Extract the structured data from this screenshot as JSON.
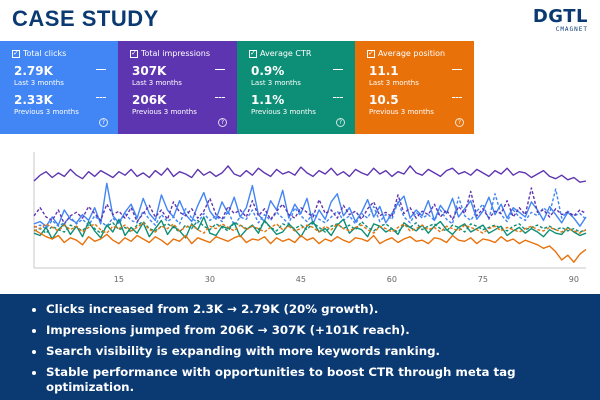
{
  "header": {
    "title": "CASE STUDY"
  },
  "logo": {
    "brand": "DGTL",
    "sub": "CMAGNET"
  },
  "metrics": [
    {
      "name": "Total clicks",
      "current": "2.79K",
      "current_label": "Last 3 months",
      "previous": "2.33K",
      "previous_label": "Previous 3 months",
      "color": "#4285f4"
    },
    {
      "name": "Total impressions",
      "current": "307K",
      "current_label": "Last 3 months",
      "previous": "206K",
      "previous_label": "Previous 3 months",
      "color": "#5e35b1"
    },
    {
      "name": "Average CTR",
      "current": "0.9%",
      "current_label": "Last 3 months",
      "previous": "1.1%",
      "previous_label": "Previous 3 months",
      "color": "#0d8e76"
    },
    {
      "name": "Average position",
      "current": "11.1",
      "current_label": "Last 3 months",
      "previous": "10.5",
      "previous_label": "Previous 3 months",
      "color": "#e8710a"
    }
  ],
  "chart_data": {
    "type": "line",
    "xlabel": "",
    "ylabel": "",
    "xlim": [
      1,
      92
    ],
    "ylim": [
      0,
      100
    ],
    "xticks": [
      15,
      30,
      45,
      60,
      75,
      90
    ],
    "grid": false,
    "series": [
      {
        "name": "Total clicks (last 3 months)",
        "color": "#4285f4",
        "dash": false,
        "values": [
          38,
          40,
          36,
          44,
          37,
          50,
          42,
          39,
          46,
          41,
          52,
          38,
          73,
          45,
          39,
          48,
          55,
          43,
          60,
          47,
          41,
          63,
          50,
          44,
          58,
          46,
          40,
          54,
          65,
          49,
          42,
          57,
          47,
          61,
          44,
          52,
          71,
          46,
          40,
          58,
          50,
          67,
          43,
          55,
          47,
          60,
          38,
          50,
          42,
          57,
          64,
          45,
          52,
          40,
          48,
          59,
          44,
          53,
          39,
          47,
          56,
          62,
          43,
          50,
          45,
          58,
          41,
          54,
          47,
          60,
          44,
          51,
          58,
          42,
          49,
          61,
          46,
          55,
          43,
          52,
          48,
          44,
          57,
          50,
          41,
          53,
          46,
          39,
          48,
          43,
          36,
          44
        ]
      },
      {
        "name": "Total clicks (previous 3 months)",
        "color": "#4285f4",
        "dash": true,
        "values": [
          35,
          37,
          34,
          41,
          36,
          39,
          44,
          38,
          42,
          37,
          45,
          40,
          36,
          43,
          38,
          47,
          41,
          39,
          49,
          42,
          37,
          46,
          40,
          44,
          38,
          51,
          43,
          39,
          47,
          41,
          45,
          40,
          49,
          37,
          44,
          42,
          50,
          39,
          46,
          41,
          48,
          43,
          38,
          52,
          45,
          40,
          47,
          42,
          39,
          44,
          49,
          41,
          45,
          38,
          47,
          43,
          53,
          40,
          46,
          42,
          57,
          44,
          39,
          48,
          43,
          46,
          41,
          50,
          42,
          38,
          61,
          45,
          41,
          49,
          55,
          42,
          64,
          46,
          40,
          50,
          44,
          41,
          48,
          45,
          52,
          47,
          68,
          43,
          49,
          45,
          47,
          42
        ]
      },
      {
        "name": "Total impressions (last 3 months)",
        "color": "#5e35b1",
        "dash": false,
        "values": [
          75,
          80,
          83,
          78,
          82,
          79,
          85,
          80,
          77,
          83,
          79,
          84,
          81,
          78,
          83,
          80,
          85,
          79,
          82,
          78,
          84,
          80,
          86,
          79,
          83,
          81,
          78,
          85,
          80,
          83,
          79,
          82,
          88,
          81,
          79,
          84,
          80,
          86,
          82,
          79,
          85,
          81,
          83,
          80,
          87,
          82,
          79,
          84,
          81,
          86,
          80,
          83,
          79,
          85,
          82,
          80,
          86,
          81,
          84,
          79,
          83,
          81,
          88,
          82,
          80,
          85,
          82,
          79,
          84,
          86,
          81,
          83,
          80,
          85,
          82,
          79,
          84,
          81,
          86,
          80,
          83,
          82,
          78,
          81,
          84,
          79,
          77,
          80,
          76,
          78,
          74,
          75
        ]
      },
      {
        "name": "Total impressions (previous 3 months)",
        "color": "#5e35b1",
        "dash": true,
        "values": [
          45,
          52,
          44,
          41,
          50,
          38,
          45,
          48,
          43,
          53,
          47,
          41,
          55,
          46,
          49,
          43,
          52,
          40,
          47,
          54,
          44,
          50,
          42,
          57,
          48,
          45,
          51,
          43,
          49,
          60,
          46,
          42,
          53,
          47,
          50,
          44,
          58,
          45,
          51,
          42,
          49,
          55,
          46,
          43,
          52,
          48,
          44,
          59,
          47,
          50,
          43,
          54,
          46,
          49,
          42,
          51,
          57,
          45,
          48,
          44,
          63,
          47,
          52,
          43,
          49,
          46,
          55,
          44,
          50,
          42,
          53,
          47,
          66,
          45,
          51,
          43,
          49,
          47,
          58,
          44,
          52,
          46,
          69,
          48,
          50,
          44,
          51,
          46,
          48,
          45,
          50,
          47
        ]
      },
      {
        "name": "Average CTR (last 3 months)",
        "color": "#0d8e76",
        "dash": false,
        "values": [
          30,
          28,
          35,
          25,
          33,
          38,
          29,
          36,
          27,
          40,
          32,
          26,
          37,
          31,
          42,
          28,
          35,
          30,
          39,
          27,
          34,
          41,
          29,
          36,
          32,
          26,
          38,
          33,
          44,
          30,
          28,
          36,
          34,
          39,
          27,
          33,
          37,
          30,
          41,
          35,
          29,
          31,
          38,
          33,
          27,
          36,
          40,
          31,
          34,
          28,
          37,
          42,
          30,
          35,
          33,
          27,
          38,
          36,
          31,
          34,
          29,
          39,
          35,
          32,
          37,
          30,
          36,
          40,
          33,
          29,
          35,
          38,
          31,
          34,
          37,
          30,
          33,
          36,
          28,
          32,
          35,
          30,
          34,
          31,
          27,
          33,
          30,
          29,
          35,
          31,
          28,
          30
        ]
      },
      {
        "name": "Average CTR (previous 3 months)",
        "color": "#0d8e76",
        "dash": true,
        "values": [
          32,
          34,
          30,
          36,
          33,
          31,
          37,
          35,
          32,
          38,
          34,
          30,
          36,
          39,
          33,
          35,
          31,
          37,
          40,
          34,
          32,
          36,
          38,
          35,
          31,
          37,
          34,
          41,
          36,
          33,
          38,
          35,
          32,
          39,
          37,
          34,
          36,
          33,
          40,
          35,
          32,
          38,
          36,
          34,
          37,
          33,
          39,
          35,
          31,
          36,
          38,
          34,
          37,
          33,
          40,
          35,
          32,
          36,
          38,
          34,
          31,
          37,
          35,
          39,
          33,
          36,
          38,
          34,
          32,
          37,
          35,
          31,
          38,
          36,
          33,
          35,
          37,
          34,
          32,
          36,
          38,
          33,
          35,
          37,
          34,
          36,
          33,
          35,
          32,
          34,
          31,
          33
        ]
      },
      {
        "name": "Average position (last 3 months)",
        "color": "#e8710a",
        "dash": false,
        "values": [
          33,
          30,
          27,
          25,
          28,
          22,
          26,
          24,
          20,
          27,
          23,
          25,
          29,
          24,
          21,
          26,
          23,
          28,
          25,
          22,
          27,
          24,
          20,
          25,
          23,
          28,
          21,
          26,
          24,
          22,
          27,
          25,
          23,
          26,
          28,
          22,
          25,
          24,
          27,
          21,
          26,
          23,
          25,
          22,
          28,
          24,
          26,
          21,
          25,
          23,
          27,
          24,
          22,
          26,
          25,
          23,
          28,
          21,
          24,
          26,
          22,
          25,
          27,
          23,
          24,
          21,
          26,
          25,
          22,
          28,
          24,
          23,
          26,
          21,
          25,
          24,
          22,
          27,
          23,
          25,
          21,
          24,
          22,
          20,
          17,
          19,
          14,
          7,
          11,
          5,
          12,
          16
        ]
      },
      {
        "name": "Average position (previous 3 months)",
        "color": "#e8710a",
        "dash": true,
        "values": [
          36,
          34,
          38,
          35,
          32,
          37,
          33,
          36,
          31,
          35,
          38,
          33,
          30,
          36,
          34,
          37,
          32,
          35,
          39,
          33,
          31,
          36,
          34,
          38,
          32,
          35,
          37,
          33,
          30,
          36,
          34,
          38,
          35,
          32,
          37,
          33,
          36,
          34,
          31,
          35,
          38,
          33,
          36,
          32,
          34,
          37,
          35,
          31,
          36,
          33,
          38,
          34,
          32,
          35,
          37,
          33,
          30,
          36,
          34,
          31,
          35,
          38,
          32,
          34,
          37,
          33,
          35,
          31,
          36,
          34,
          32,
          37,
          35,
          33,
          30,
          34,
          36,
          32,
          35,
          33,
          31,
          34,
          36,
          33,
          32,
          35,
          33,
          31,
          34,
          32,
          30,
          33
        ]
      }
    ]
  },
  "insights": [
    "Clicks increased from 2.3K → 2.79K (20% growth).",
    "Impressions jumped from 206K → 307K (+101K reach).",
    "Search visibility is expanding with more keywords ranking.",
    "Stable performance with opportunities to boost CTR through meta tag optimization."
  ]
}
